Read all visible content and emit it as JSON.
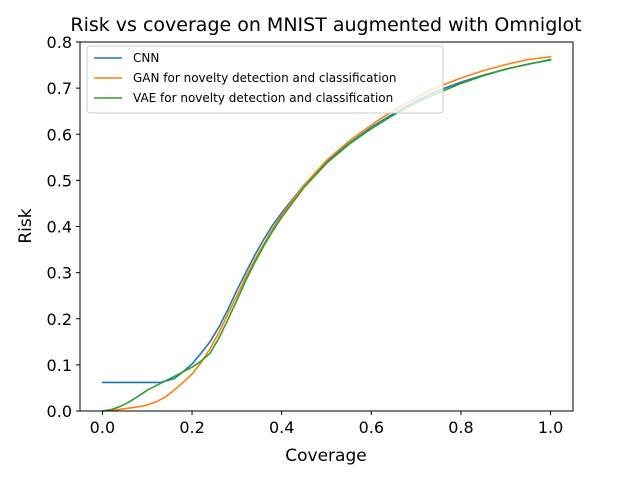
{
  "chart_data": {
    "type": "line",
    "title": "Risk vs coverage on MNIST augmented with Omniglot",
    "xlabel": "Coverage",
    "ylabel": "Risk",
    "xlim": [
      -0.05,
      1.05
    ],
    "ylim": [
      0.0,
      0.8
    ],
    "xticks": [
      0.0,
      0.2,
      0.4,
      0.6,
      0.8,
      1.0
    ],
    "xtick_labels": [
      "0.0",
      "0.2",
      "0.4",
      "0.6",
      "0.8",
      "1.0"
    ],
    "yticks": [
      0.0,
      0.1,
      0.2,
      0.3,
      0.4,
      0.5,
      0.6,
      0.7,
      0.8
    ],
    "ytick_labels": [
      "0.0",
      "0.1",
      "0.2",
      "0.3",
      "0.4",
      "0.5",
      "0.6",
      "0.7",
      "0.8"
    ],
    "grid": false,
    "legend_position": "top-left",
    "series": [
      {
        "name": "CNN",
        "color": "#1f77b4",
        "x": [
          0.0,
          0.05,
          0.1,
          0.13,
          0.16,
          0.18,
          0.2,
          0.22,
          0.24,
          0.26,
          0.28,
          0.3,
          0.32,
          0.34,
          0.36,
          0.38,
          0.4,
          0.45,
          0.5,
          0.55,
          0.6,
          0.65,
          0.7,
          0.75,
          0.8,
          0.85,
          0.9,
          0.95,
          1.0
        ],
        "y": [
          0.062,
          0.062,
          0.062,
          0.062,
          0.07,
          0.085,
          0.102,
          0.125,
          0.15,
          0.182,
          0.22,
          0.262,
          0.3,
          0.338,
          0.372,
          0.403,
          0.43,
          0.49,
          0.54,
          0.58,
          0.615,
          0.645,
          0.672,
          0.695,
          0.713,
          0.728,
          0.741,
          0.752,
          0.762
        ]
      },
      {
        "name": "GAN for novelty detection and classification",
        "color": "#ff7f0e",
        "x": [
          0.0,
          0.02,
          0.05,
          0.08,
          0.1,
          0.12,
          0.14,
          0.16,
          0.18,
          0.2,
          0.22,
          0.24,
          0.26,
          0.28,
          0.3,
          0.32,
          0.34,
          0.36,
          0.38,
          0.4,
          0.45,
          0.5,
          0.55,
          0.6,
          0.65,
          0.7,
          0.75,
          0.8,
          0.85,
          0.9,
          0.95,
          1.0
        ],
        "y": [
          0.0,
          0.001,
          0.005,
          0.009,
          0.013,
          0.02,
          0.03,
          0.045,
          0.062,
          0.08,
          0.105,
          0.135,
          0.17,
          0.21,
          0.25,
          0.29,
          0.328,
          0.362,
          0.395,
          0.425,
          0.49,
          0.543,
          0.585,
          0.62,
          0.652,
          0.68,
          0.703,
          0.722,
          0.738,
          0.751,
          0.762,
          0.768
        ]
      },
      {
        "name": "VAE for novelty detection and classification",
        "color": "#2ca02c",
        "x": [
          0.0,
          0.02,
          0.04,
          0.06,
          0.08,
          0.1,
          0.12,
          0.14,
          0.16,
          0.18,
          0.2,
          0.22,
          0.24,
          0.26,
          0.28,
          0.3,
          0.32,
          0.34,
          0.36,
          0.38,
          0.4,
          0.45,
          0.5,
          0.55,
          0.6,
          0.65,
          0.7,
          0.75,
          0.8,
          0.85,
          0.9,
          0.95,
          1.0
        ],
        "y": [
          0.0,
          0.003,
          0.01,
          0.02,
          0.032,
          0.045,
          0.055,
          0.065,
          0.075,
          0.085,
          0.095,
          0.108,
          0.125,
          0.158,
          0.198,
          0.24,
          0.283,
          0.322,
          0.358,
          0.39,
          0.42,
          0.485,
          0.537,
          0.578,
          0.612,
          0.642,
          0.668,
          0.69,
          0.71,
          0.727,
          0.741,
          0.752,
          0.761
        ]
      }
    ]
  }
}
